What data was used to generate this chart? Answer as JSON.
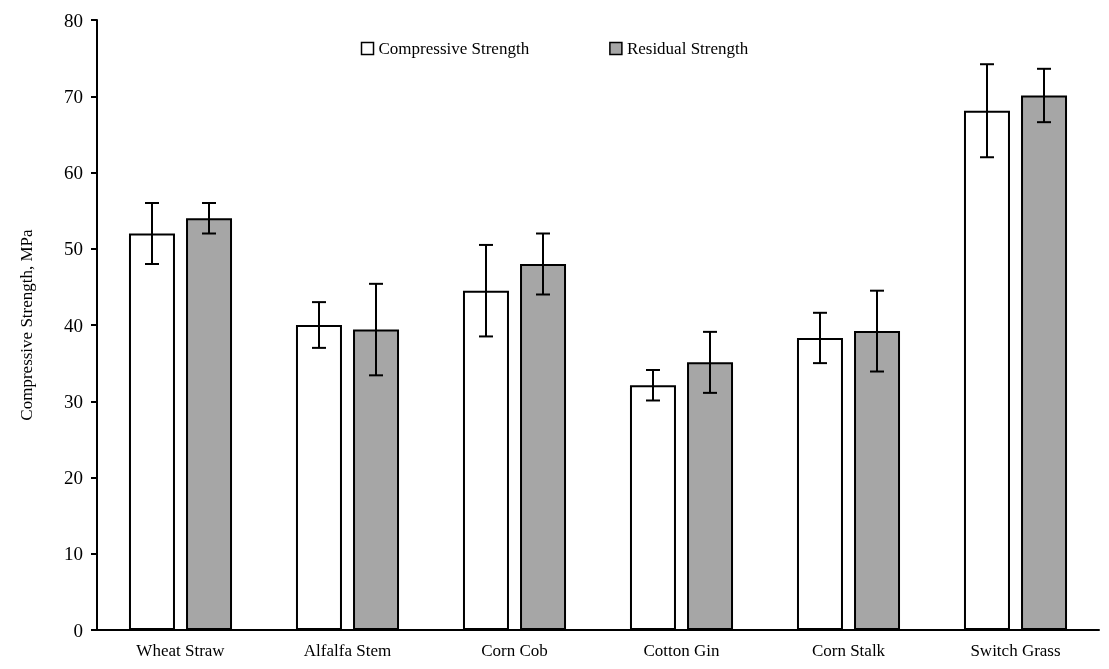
{
  "chart_data": {
    "type": "bar",
    "ylabel": "Compressive Strength, MPa",
    "categories": [
      "Wheat Straw",
      "Alfalfa Stem",
      "Corn Cob",
      "Cotton Gin",
      "Corn Stalk",
      "Switch Grass"
    ],
    "series": [
      {
        "name": "Compressive Strength",
        "color": "#ffffff",
        "values": [
          52.0,
          40.0,
          44.5,
          32.1,
          38.3,
          68.1
        ],
        "errors": [
          4.0,
          3.0,
          6.0,
          2.0,
          3.3,
          6.1
        ]
      },
      {
        "name": "Residual Strength",
        "color": "#a6a6a6",
        "values": [
          54.0,
          39.4,
          48.0,
          35.1,
          39.2,
          70.1
        ],
        "errors": [
          2.0,
          6.0,
          4.0,
          4.0,
          5.3,
          3.5
        ]
      }
    ],
    "ylim": [
      0,
      80
    ],
    "yticks": [
      0,
      10,
      20,
      30,
      40,
      50,
      60,
      70,
      80
    ],
    "grid": false,
    "legend": "top"
  }
}
